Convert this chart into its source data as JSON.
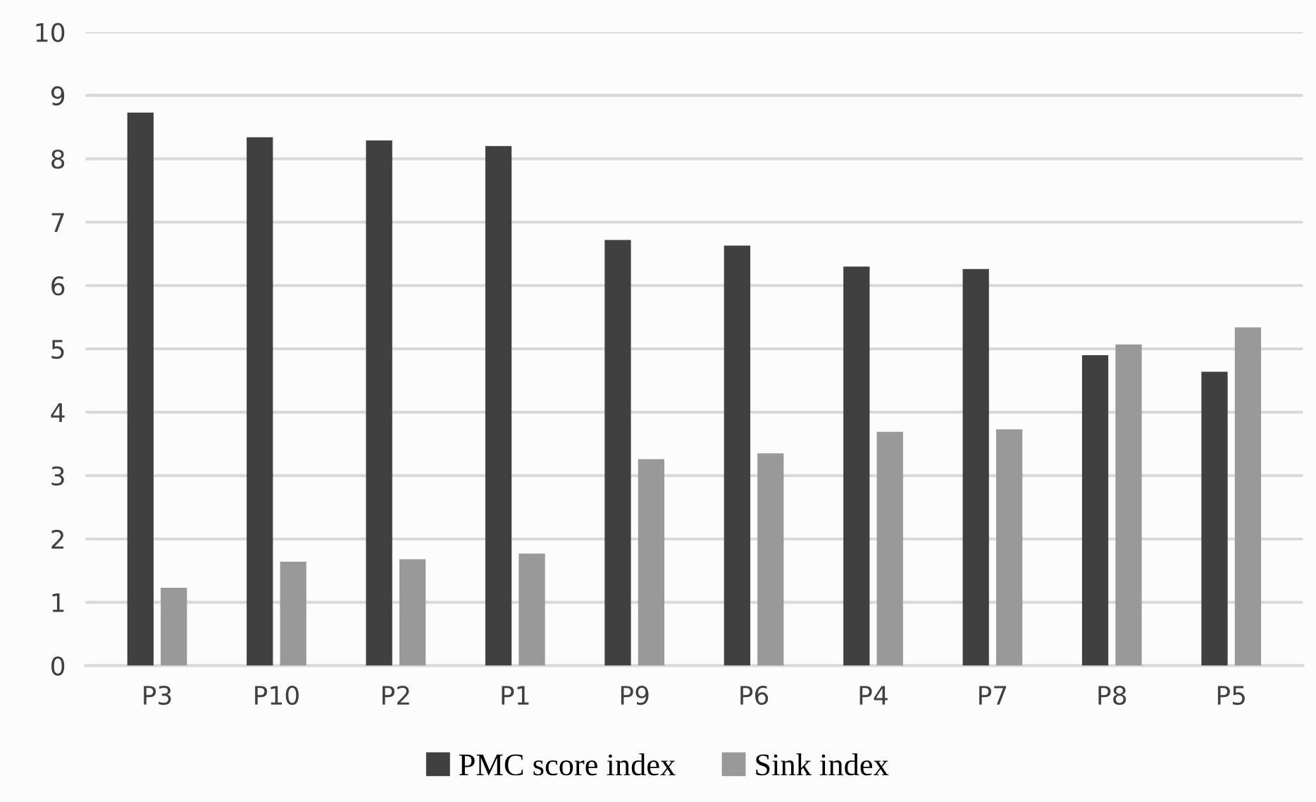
{
  "chart_data": {
    "type": "bar",
    "categories": [
      "P3",
      "P10",
      "P2",
      "P1",
      "P9",
      "P6",
      "P4",
      "P7",
      "P8",
      "P5"
    ],
    "series": [
      {
        "name": "PMC score index",
        "color": "#404040",
        "values": [
          8.73,
          8.34,
          8.29,
          8.2,
          6.72,
          6.63,
          6.3,
          6.26,
          4.9,
          4.64
        ]
      },
      {
        "name": "Sink index",
        "color": "#999999",
        "values": [
          1.23,
          1.64,
          1.68,
          1.77,
          3.26,
          3.35,
          3.69,
          3.73,
          5.07,
          5.34
        ]
      }
    ],
    "ylim": [
      0,
      10
    ],
    "yticks": [
      0,
      1,
      2,
      3,
      4,
      5,
      6,
      7,
      8,
      9,
      10
    ],
    "grid": "y",
    "legend": "bottom"
  }
}
